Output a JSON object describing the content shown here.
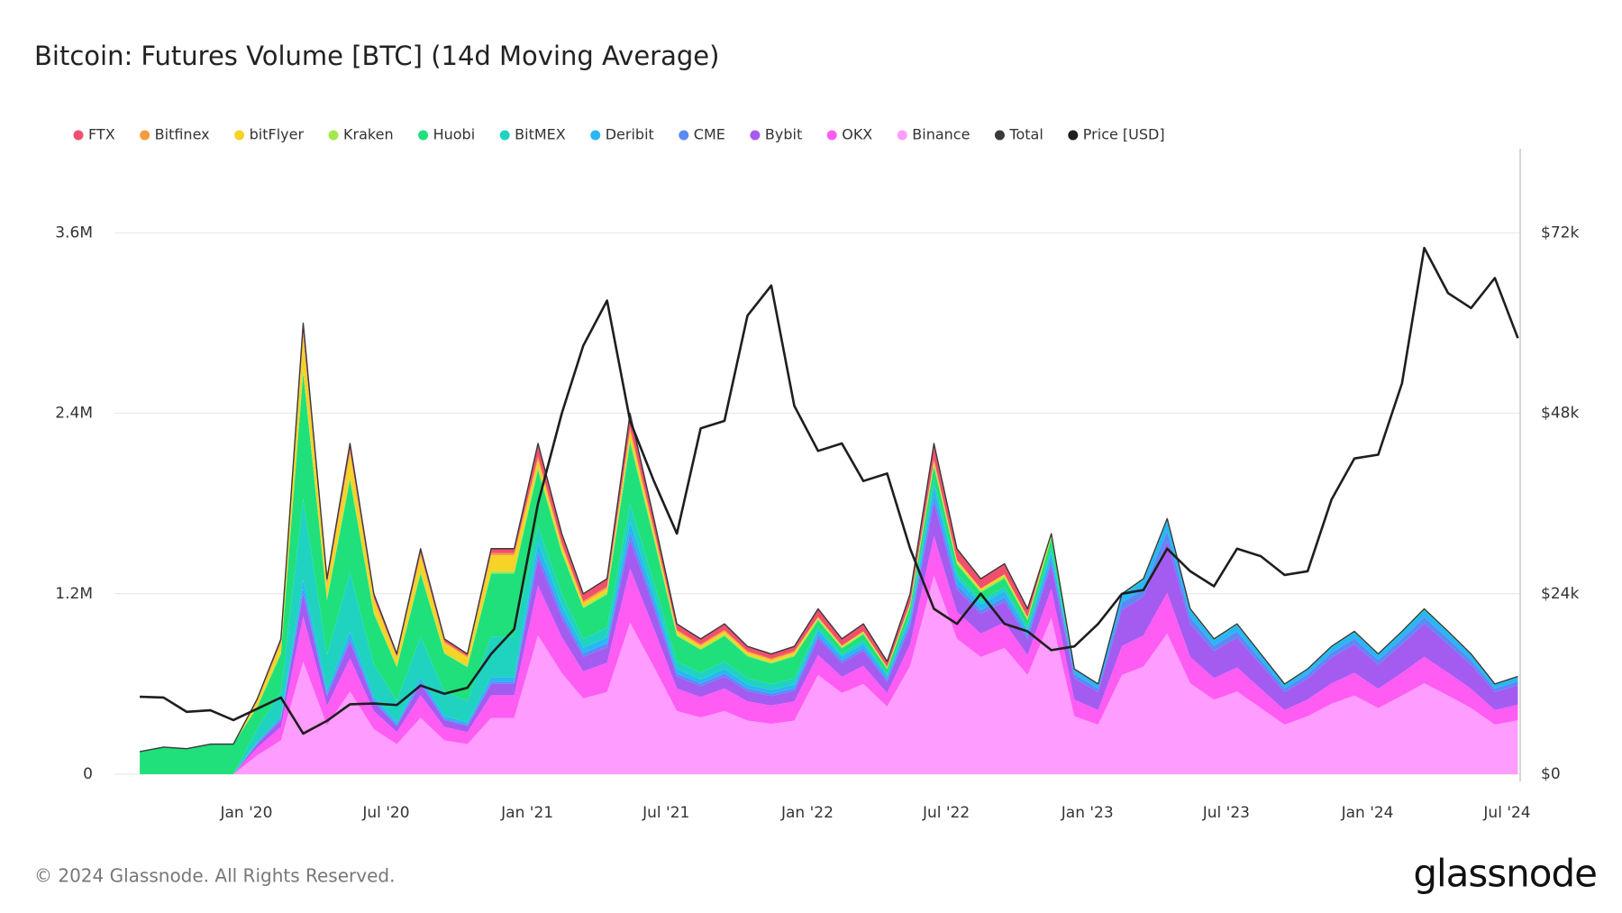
{
  "chart_data": {
    "type": "area",
    "title": "Bitcoin: Futures Volume [BTC] (14d Moving Average)",
    "x": [
      "2019-08-15",
      "2019-09-15",
      "2019-10-15",
      "2019-11-15",
      "2019-12-15",
      "2020-01-15",
      "2020-02-15",
      "2020-03-15",
      "2020-04-15",
      "2020-05-15",
      "2020-06-15",
      "2020-07-15",
      "2020-08-15",
      "2020-09-15",
      "2020-10-15",
      "2020-11-15",
      "2020-12-15",
      "2021-01-15",
      "2021-02-15",
      "2021-03-15",
      "2021-04-15",
      "2021-05-15",
      "2021-06-15",
      "2021-07-15",
      "2021-08-15",
      "2021-09-15",
      "2021-10-15",
      "2021-11-15",
      "2021-12-15",
      "2022-01-15",
      "2022-02-15",
      "2022-03-15",
      "2022-04-15",
      "2022-05-15",
      "2022-06-15",
      "2022-07-15",
      "2022-08-15",
      "2022-09-15",
      "2022-10-15",
      "2022-11-15",
      "2022-12-15",
      "2023-01-15",
      "2023-02-15",
      "2023-03-15",
      "2023-04-15",
      "2023-05-15",
      "2023-06-15",
      "2023-07-15",
      "2023-08-15",
      "2023-09-15",
      "2023-10-15",
      "2023-11-15",
      "2023-12-15",
      "2024-01-15",
      "2024-02-15",
      "2024-03-15",
      "2024-04-15",
      "2024-05-15",
      "2024-06-15",
      "2024-07-15"
    ],
    "xlim": [
      "2019-07-13",
      "2024-07-18"
    ],
    "xticks": [
      {
        "value": "2020-01-01",
        "label": "Jan '20"
      },
      {
        "value": "2020-07-01",
        "label": "Jul '20"
      },
      {
        "value": "2021-01-01",
        "label": "Jan '21"
      },
      {
        "value": "2021-07-01",
        "label": "Jul '21"
      },
      {
        "value": "2022-01-01",
        "label": "Jan '22"
      },
      {
        "value": "2022-07-01",
        "label": "Jul '22"
      },
      {
        "value": "2023-01-01",
        "label": "Jan '23"
      },
      {
        "value": "2023-07-01",
        "label": "Jul '23"
      },
      {
        "value": "2024-01-01",
        "label": "Jan '24"
      },
      {
        "value": "2024-07-01",
        "label": "Jul '24"
      }
    ],
    "ylim": [
      0,
      4160000
    ],
    "yticks": [
      0,
      {
        "value": 1200000,
        "label": "1.2M"
      },
      {
        "value": 2400000,
        "label": "2.4M"
      },
      {
        "value": 3600000,
        "label": "3.6M"
      }
    ],
    "y2lim": [
      0,
      83200
    ],
    "y2ticks": [
      {
        "value": 0,
        "label": "$0"
      },
      {
        "value": 24000,
        "label": "$24k"
      },
      {
        "value": 48000,
        "label": "$48k"
      },
      {
        "value": 72000,
        "label": "$72k"
      }
    ],
    "grid": true,
    "legend": "top",
    "series": [
      {
        "name": "FTX",
        "color": "#f0506e",
        "values": [
          0,
          0,
          0,
          0,
          0,
          10000,
          18000,
          60000,
          26000,
          44000,
          24000,
          16000,
          30000,
          18000,
          16000,
          30000,
          30000,
          88000,
          64000,
          48000,
          52000,
          96000,
          68000,
          40000,
          36000,
          40000,
          34000,
          32000,
          34000,
          55000,
          45000,
          50000,
          38000,
          60000,
          110000,
          75000,
          65000,
          70000,
          55000,
          0,
          0,
          0,
          0,
          0,
          0,
          0,
          0,
          0,
          0,
          0,
          0,
          0,
          0,
          0,
          0,
          0,
          0,
          0,
          0,
          0
        ]
      },
      {
        "name": "Bitfinex",
        "color": "#f79a3e",
        "values": [
          0,
          0,
          0,
          0,
          0,
          5000,
          9000,
          30000,
          13000,
          22000,
          12000,
          8000,
          15000,
          9000,
          8000,
          15000,
          15000,
          22000,
          16000,
          12000,
          13000,
          24000,
          17000,
          10000,
          9000,
          10000,
          9000,
          8000,
          9000,
          0,
          0,
          0,
          0,
          0,
          0,
          0,
          0,
          0,
          0,
          0,
          0,
          0,
          0,
          0,
          0,
          0,
          0,
          0,
          0,
          0,
          0,
          0,
          0,
          0,
          0,
          0,
          0,
          0,
          0,
          0
        ]
      },
      {
        "name": "bitFlyer",
        "color": "#f5d327",
        "values": [
          0,
          0,
          0,
          0,
          0,
          35000,
          63000,
          210000,
          91000,
          154000,
          84000,
          56000,
          105000,
          63000,
          56000,
          105000,
          105000,
          44000,
          32000,
          24000,
          26000,
          48000,
          34000,
          20000,
          18000,
          20000,
          17000,
          16000,
          17000,
          11000,
          9000,
          10000,
          8000,
          12000,
          22000,
          15000,
          13000,
          14000,
          11000,
          16000,
          0,
          0,
          0,
          0,
          0,
          0,
          0,
          0,
          0,
          0,
          0,
          0,
          0,
          0,
          0,
          0,
          0,
          0,
          0,
          0
        ]
      },
      {
        "name": "Kraken",
        "color": "#a4e84a",
        "values": [
          0,
          0,
          0,
          0,
          0,
          5000,
          9000,
          30000,
          13000,
          22000,
          12000,
          8000,
          15000,
          9000,
          8000,
          15000,
          15000,
          22000,
          16000,
          12000,
          13000,
          24000,
          17000,
          10000,
          9000,
          10000,
          9000,
          8000,
          9000,
          11000,
          9000,
          10000,
          8000,
          12000,
          22000,
          15000,
          13000,
          14000,
          11000,
          16000,
          0,
          0,
          0,
          0,
          0,
          0,
          0,
          0,
          0,
          0,
          0,
          0,
          0,
          0,
          0,
          0,
          0,
          0,
          0,
          0
        ]
      },
      {
        "name": "Huobi",
        "color": "#1fe07a",
        "values": [
          150000,
          180000,
          170000,
          200000,
          200000,
          140000,
          252000,
          840000,
          364000,
          616000,
          336000,
          224000,
          420000,
          252000,
          224000,
          420000,
          420000,
          374000,
          272000,
          204000,
          221000,
          408000,
          289000,
          170000,
          153000,
          170000,
          145000,
          136000,
          145000,
          44000,
          36000,
          40000,
          30000,
          48000,
          88000,
          60000,
          52000,
          56000,
          44000,
          64000,
          0,
          0,
          0,
          0,
          0,
          0,
          0,
          0,
          0,
          0,
          0,
          0,
          0,
          0,
          0,
          0,
          0,
          0,
          0,
          0
        ]
      },
      {
        "name": "BitMEX",
        "color": "#20d3c0",
        "values": [
          0,
          0,
          0,
          0,
          0,
          90000,
          162000,
          540000,
          234000,
          396000,
          216000,
          144000,
          270000,
          162000,
          144000,
          270000,
          270000,
          110000,
          80000,
          60000,
          65000,
          120000,
          85000,
          50000,
          45000,
          50000,
          43000,
          40000,
          43000,
          22000,
          18000,
          20000,
          15000,
          24000,
          44000,
          30000,
          26000,
          28000,
          22000,
          32000,
          7000,
          6000,
          12000,
          13000,
          17000,
          11000,
          9000,
          10000,
          8000,
          6000,
          7000,
          9000,
          10000,
          8000,
          10000,
          11000,
          10000,
          8000,
          6000,
          7000
        ]
      },
      {
        "name": "Deribit",
        "color": "#29b6f6",
        "values": [
          0,
          0,
          0,
          0,
          0,
          10000,
          18000,
          60000,
          26000,
          44000,
          24000,
          16000,
          30000,
          18000,
          16000,
          30000,
          30000,
          66000,
          48000,
          36000,
          39000,
          72000,
          51000,
          30000,
          27000,
          30000,
          26000,
          24000,
          26000,
          33000,
          27000,
          30000,
          23000,
          36000,
          66000,
          45000,
          39000,
          42000,
          33000,
          48000,
          28000,
          24000,
          48000,
          52000,
          68000,
          44000,
          36000,
          40000,
          32000,
          24000,
          28000,
          34000,
          38000,
          32000,
          38000,
          44000,
          38000,
          32000,
          24000,
          26000
        ]
      },
      {
        "name": "CME",
        "color": "#5b8af5",
        "values": [
          0,
          0,
          0,
          0,
          0,
          5000,
          9000,
          30000,
          13000,
          22000,
          12000,
          8000,
          15000,
          9000,
          8000,
          15000,
          15000,
          44000,
          32000,
          24000,
          26000,
          48000,
          34000,
          20000,
          18000,
          20000,
          17000,
          16000,
          17000,
          22000,
          18000,
          20000,
          15000,
          24000,
          44000,
          30000,
          26000,
          28000,
          22000,
          32000,
          28000,
          24000,
          48000,
          52000,
          68000,
          44000,
          36000,
          40000,
          32000,
          24000,
          28000,
          34000,
          38000,
          32000,
          38000,
          44000,
          38000,
          32000,
          24000,
          26000
        ]
      },
      {
        "name": "Bybit",
        "color": "#a45bf0",
        "values": [
          0,
          0,
          0,
          0,
          0,
          25000,
          45000,
          150000,
          65000,
          110000,
          60000,
          40000,
          75000,
          45000,
          40000,
          75000,
          75000,
          176000,
          128000,
          96000,
          104000,
          192000,
          136000,
          80000,
          72000,
          80000,
          68000,
          64000,
          68000,
          110000,
          90000,
          100000,
          75000,
          120000,
          220000,
          150000,
          130000,
          140000,
          110000,
          160000,
          140000,
          120000,
          240000,
          260000,
          340000,
          220000,
          180000,
          200000,
          160000,
          120000,
          140000,
          170000,
          190000,
          160000,
          190000,
          220000,
          190000,
          160000,
          120000,
          130000
        ]
      },
      {
        "name": "OKX",
        "color": "#ff5cf4",
        "values": [
          0,
          0,
          0,
          0,
          0,
          50000,
          90000,
          300000,
          130000,
          220000,
          120000,
          80000,
          150000,
          90000,
          80000,
          150000,
          150000,
          330000,
          240000,
          180000,
          195000,
          360000,
          255000,
          150000,
          135000,
          150000,
          128000,
          120000,
          128000,
          132000,
          108000,
          120000,
          90000,
          144000,
          264000,
          180000,
          156000,
          168000,
          132000,
          192000,
          112000,
          96000,
          192000,
          208000,
          272000,
          176000,
          144000,
          160000,
          128000,
          96000,
          112000,
          136000,
          152000,
          128000,
          152000,
          176000,
          152000,
          128000,
          96000,
          104000
        ]
      },
      {
        "name": "Binance",
        "color": "#ff9cff",
        "values": [
          0,
          0,
          0,
          0,
          0,
          125000,
          225000,
          750000,
          325000,
          550000,
          300000,
          200000,
          375000,
          225000,
          200000,
          375000,
          375000,
          924000,
          672000,
          504000,
          546000,
          1008000,
          714000,
          420000,
          378000,
          420000,
          357000,
          336000,
          357000,
          660000,
          540000,
          600000,
          450000,
          720000,
          1320000,
          900000,
          780000,
          840000,
          660000,
          1040000,
          385000,
          330000,
          660000,
          715000,
          935000,
          605000,
          495000,
          550000,
          440000,
          330000,
          385000,
          468000,
          523000,
          440000,
          523000,
          605000,
          523000,
          440000,
          330000,
          358000
        ]
      },
      {
        "name": "Total",
        "color": "#3a3a3a",
        "type": "line",
        "values": [
          150000,
          180000,
          170000,
          200000,
          200000,
          500000,
          900000,
          3000000,
          1300000,
          2200000,
          1200000,
          800000,
          1500000,
          900000,
          800000,
          1500000,
          1500000,
          2200000,
          1600000,
          1200000,
          1300000,
          2400000,
          1700000,
          1000000,
          900000,
          1000000,
          850000,
          800000,
          850000,
          1100000,
          900000,
          1000000,
          750000,
          1200000,
          2200000,
          1500000,
          1300000,
          1400000,
          1100000,
          1600000,
          700000,
          600000,
          1200000,
          1300000,
          1700000,
          1100000,
          900000,
          1000000,
          800000,
          600000,
          700000,
          850000,
          950000,
          800000,
          950000,
          1100000,
          950000,
          800000,
          600000,
          650000
        ]
      },
      {
        "name": "Price [USD]",
        "color": "#1e1e1e",
        "type": "line",
        "axis": "y2",
        "values": [
          10300,
          10200,
          8300,
          8500,
          7200,
          8700,
          10200,
          5400,
          7100,
          9300,
          9400,
          9200,
          11800,
          10700,
          11500,
          16000,
          19300,
          36000,
          48000,
          57000,
          63000,
          47000,
          39000,
          32000,
          46000,
          47000,
          61000,
          65000,
          49000,
          43000,
          44000,
          39000,
          40000,
          30000,
          22000,
          20000,
          24000,
          20000,
          19000,
          16500,
          17000,
          20000,
          24000,
          24500,
          30000,
          27000,
          25000,
          30000,
          29000,
          26500,
          27000,
          36500,
          42000,
          42500,
          52000,
          70000,
          64000,
          62000,
          66000,
          58000
        ]
      }
    ]
  },
  "footer": {
    "copyright": "© 2024 Glassnode. All Rights Reserved.",
    "brand": "glassnode"
  }
}
